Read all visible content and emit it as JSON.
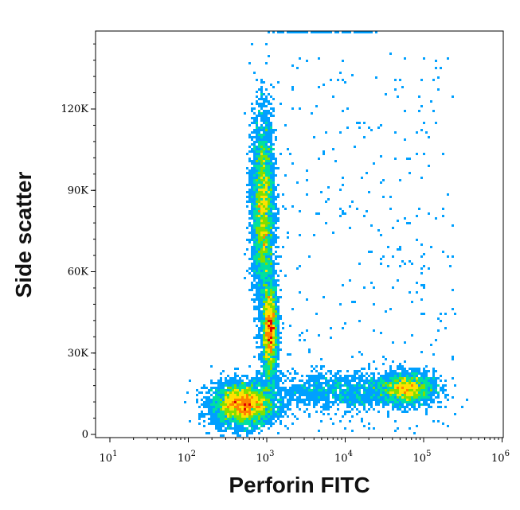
{
  "chart_data": {
    "type": "scatter",
    "subtype": "flow-cytometry-density",
    "xlabel": "Perforin FITC",
    "ylabel": "Side scatter",
    "x_scale": "log",
    "xlim": [
      5,
      120000
    ],
    "ylim": [
      -1000,
      147000
    ],
    "x_ticks": [
      {
        "value": 10,
        "base": "10",
        "exp": "1"
      },
      {
        "value": 100,
        "base": "10",
        "exp": "2"
      },
      {
        "value": 1000,
        "base": "10",
        "exp": "3"
      },
      {
        "value": 10000,
        "base": "10",
        "exp": "4"
      },
      {
        "value": 100000,
        "base": "10",
        "exp": "5"
      },
      {
        "value": 1000000,
        "base": "10",
        "exp": "6"
      }
    ],
    "y_ticks": [
      {
        "value": 0,
        "label": "0"
      },
      {
        "value": 30000,
        "label": "30K"
      },
      {
        "value": 60000,
        "label": "60K"
      },
      {
        "value": 90000,
        "label": "90K"
      },
      {
        "value": 120000,
        "label": "120K"
      }
    ],
    "color_map": [
      "#0000cc",
      "#00a0ff",
      "#00e0a0",
      "#80e000",
      "#ffe000",
      "#ff8000",
      "#e00000"
    ],
    "populations": [
      {
        "x_center": 500,
        "y_center": 11000,
        "x_spread": 0.2,
        "y_spread": 4000,
        "density": 1.0
      },
      {
        "x_center": 900,
        "y_center": 83000,
        "x_spread": 0.07,
        "y_spread": 17000,
        "density": 0.9
      },
      {
        "x_center": 1100,
        "y_center": 38000,
        "x_spread": 0.05,
        "y_spread": 9000,
        "density": 0.6
      },
      {
        "x_center": 60000,
        "y_center": 17000,
        "x_spread": 0.18,
        "y_spread": 3000,
        "density": 0.45
      },
      {
        "x_center": 8000,
        "y_center": 16000,
        "x_spread": 0.5,
        "y_spread": 3500,
        "density": 0.3
      }
    ]
  }
}
